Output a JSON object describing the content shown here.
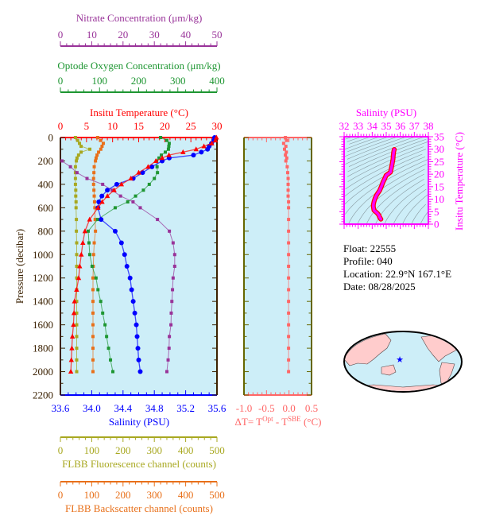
{
  "chart_data": {
    "type": "line",
    "profile_plot": {
      "pressure_axis": {
        "label": "Pressure (decibar)",
        "ticks": [
          "0",
          "200",
          "400",
          "600",
          "800",
          "1000",
          "1200",
          "1400",
          "1600",
          "1800",
          "2000",
          "2200"
        ],
        "range": [
          0,
          2200
        ],
        "inverted": true
      },
      "axes": {
        "nitrate": {
          "label": "Nitrate Concentration (μm/kg)",
          "ticks": [
            "0",
            "10",
            "20",
            "30",
            "40",
            "50"
          ],
          "range": [
            0,
            50
          ],
          "color": "#993399"
        },
        "oxygen": {
          "label": "Optode Oxygen Concentration (μm/kg)",
          "ticks": [
            "0",
            "100",
            "200",
            "300",
            "400"
          ],
          "range": [
            0,
            400
          ],
          "color": "#1e9632"
        },
        "temperature": {
          "label": "Insitu Temperature (°C)",
          "ticks": [
            "0",
            "5",
            "10",
            "15",
            "20",
            "25",
            "30"
          ],
          "range": [
            0,
            30
          ],
          "color": "#ff0000"
        },
        "salinity": {
          "label": "Salinity (PSU)",
          "ticks": [
            "33.6",
            "34.0",
            "34.4",
            "34.8",
            "35.2",
            "35.6"
          ],
          "range": [
            33.6,
            35.6
          ],
          "color": "#0000ff"
        },
        "fluorescence": {
          "label": "FLBB Fluorescence channel (counts)",
          "ticks": [
            "0",
            "100",
            "200",
            "300",
            "400",
            "500"
          ],
          "range": [
            0,
            500
          ],
          "color": "#a8a820"
        },
        "backscatter": {
          "label": "FLBB Backscatter channel (counts)",
          "ticks": [
            "0",
            "100",
            "200",
            "300",
            "400",
            "500"
          ],
          "range": [
            0,
            500
          ],
          "color": "#e8701a"
        }
      },
      "pressure": [
        0,
        25,
        50,
        75,
        100,
        125,
        150,
        175,
        200,
        250,
        300,
        350,
        400,
        450,
        500,
        550,
        600,
        700,
        800,
        900,
        1000,
        1100,
        1200,
        1300,
        1400,
        1500,
        1600,
        1700,
        1800,
        1900,
        2000
      ],
      "series": {
        "temperature": [
          29.9,
          29.7,
          29.0,
          27.5,
          26.0,
          23.5,
          20.8,
          19.5,
          18.3,
          16.8,
          15.0,
          13.5,
          11.7,
          10.3,
          9.0,
          8.0,
          7.2,
          5.6,
          4.7,
          4.3,
          4.0,
          3.7,
          3.5,
          3.1,
          2.7,
          2.6,
          2.5,
          2.3,
          2.2,
          2.1,
          2.0
        ],
        "salinity": [
          35.57,
          35.56,
          35.53,
          35.5,
          35.48,
          35.4,
          35.3,
          34.99,
          34.9,
          34.77,
          34.65,
          34.53,
          34.32,
          34.2,
          34.13,
          34.09,
          34.08,
          34.12,
          34.3,
          34.38,
          34.42,
          34.45,
          34.49,
          34.51,
          34.53,
          34.55,
          34.57,
          34.58,
          34.59,
          34.6,
          34.62
        ],
        "oxygen": [
          256,
          272,
          278,
          277,
          276,
          268,
          258,
          252,
          246,
          247,
          248,
          240,
          227,
          212,
          192,
          172,
          140,
          95,
          71,
          73,
          75,
          81,
          91,
          96,
          103,
          108,
          114,
          118,
          123,
          128,
          134
        ],
        "nitrate": [
          null,
          null,
          null,
          null,
          null,
          null,
          null,
          null,
          0.5,
          3.2,
          5.3,
          8.5,
          13.5,
          16.5,
          19.2,
          23.2,
          25.5,
          31.0,
          34.8,
          36.0,
          36.5,
          36.5,
          36.0,
          35.8,
          35.6,
          35.4,
          35.3,
          34.8,
          34.7,
          34.4,
          34.0
        ],
        "fluorescence": [
          48,
          55,
          61,
          66,
          94,
          66,
          58,
          53,
          51,
          48,
          48,
          48,
          48,
          49,
          49,
          50,
          50,
          51,
          51,
          52,
          52,
          52,
          52,
          52,
          52,
          52,
          52,
          52,
          52,
          52,
          52
        ],
        "backscatter": [
          119,
          128,
          137,
          133,
          129,
          122,
          117,
          114,
          112,
          108,
          107,
          106,
          106,
          107,
          108,
          109,
          110,
          111,
          112,
          108,
          106,
          105,
          104,
          104,
          104,
          104,
          104,
          104,
          104,
          104,
          104
        ]
      }
    },
    "delta_t_plot": {
      "label_parts": [
        "ΔT= T",
        "Opt",
        " - T",
        "SBE",
        " (°C)"
      ],
      "ticks": [
        "-1.0",
        "-0.5",
        "0.0",
        "0.5"
      ],
      "range": [
        -1.0,
        0.5
      ],
      "color": "#ff6666",
      "values": [
        -0.08,
        -0.05,
        -0.12,
        -0.07,
        -0.1,
        -0.06,
        -0.08,
        -0.05,
        -0.07,
        -0.04,
        -0.03,
        -0.02,
        -0.02,
        -0.02,
        -0.02,
        -0.01,
        -0.01,
        -0.01,
        -0.01,
        -0.01,
        -0.01,
        -0.01,
        -0.01,
        -0.01,
        -0.01,
        -0.01,
        -0.01,
        -0.01,
        -0.01,
        -0.01,
        -0.01
      ]
    },
    "ts_plot": {
      "x_label": "Salinity (PSU)",
      "x_ticks": [
        "32",
        "33",
        "34",
        "35",
        "36",
        "37",
        "38"
      ],
      "x_range": [
        32,
        38
      ],
      "y_label": "Insitu Temperature (°C)",
      "y_ticks": [
        "0",
        "5",
        "10",
        "15",
        "20",
        "25",
        "30",
        "35"
      ],
      "y_range": [
        0,
        35
      ],
      "color": "#ff00ff",
      "density_contours": true
    }
  },
  "info": {
    "float": "Float:  22555",
    "profile": "Profile:  040",
    "location": "Location:  22.9°N  167.1°E",
    "date": "Date:  08/28/2025"
  },
  "map": {
    "marker_icon": "star-icon",
    "marker_color": "#0000ff",
    "land_color": "#ffcccc",
    "ocean_color": "#cdeef8"
  },
  "colors": {
    "plot_background": "#cdeef8",
    "frame": "#3a2000"
  }
}
